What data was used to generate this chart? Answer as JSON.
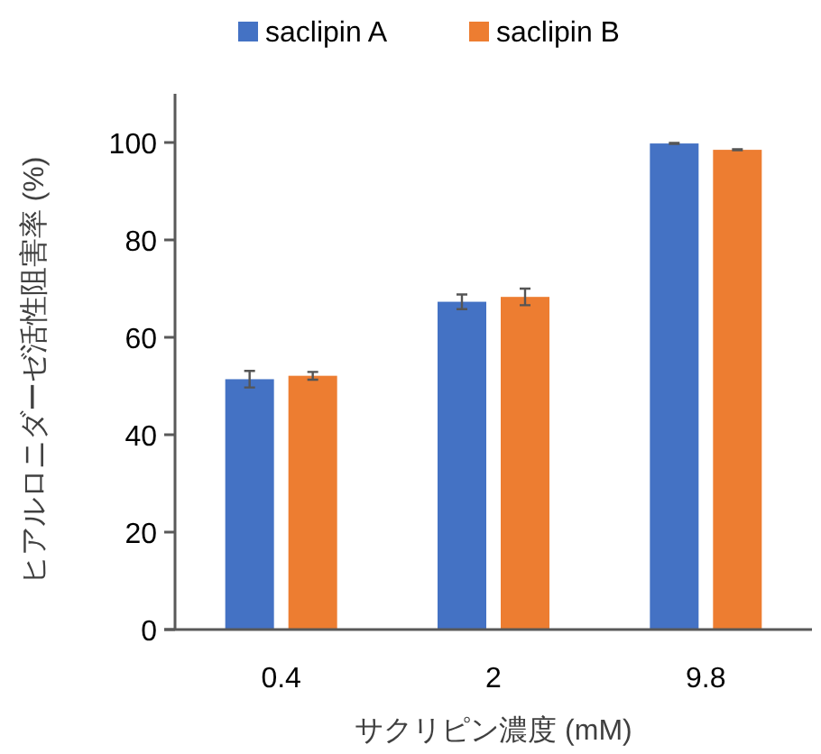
{
  "chart_data": {
    "type": "bar",
    "xlabel": "サクリピン濃度 (mM)",
    "ylabel": "ヒアルロニダーゼ活性阻害率 (%)",
    "categories": [
      "0.4",
      "2",
      "9.8"
    ],
    "series": [
      {
        "name": "saclipin A",
        "color": "#4472c4",
        "values": [
          51.4,
          67.3,
          99.8
        ],
        "errors": [
          1.7,
          1.5,
          0.1
        ]
      },
      {
        "name": "saclipin B",
        "color": "#ed7d31",
        "values": [
          52.1,
          68.3,
          98.5
        ],
        "errors": [
          0.8,
          1.7,
          0.1
        ]
      }
    ],
    "ylim": [
      0,
      110
    ],
    "yticks": [
      0,
      20,
      40,
      60,
      80,
      100
    ],
    "grid": false,
    "legend": "top"
  }
}
